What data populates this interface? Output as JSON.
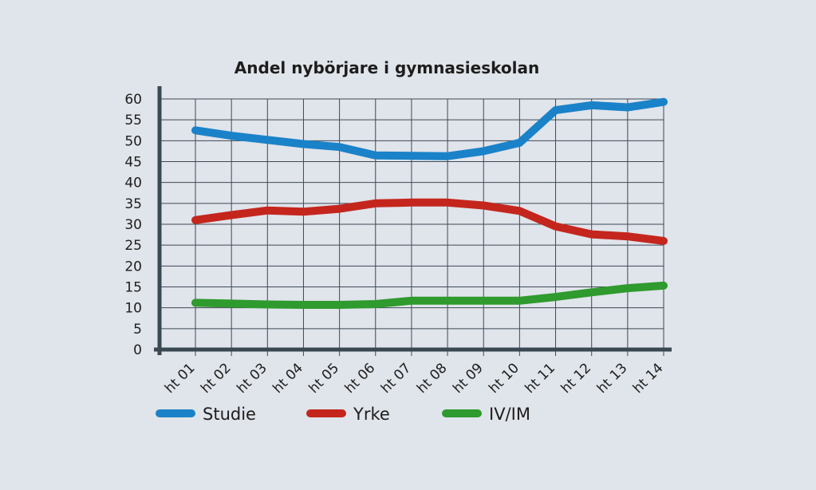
{
  "chart_data": {
    "type": "line",
    "title": "Andel nybörjare i gymnasieskolan",
    "xlabel": "",
    "ylabel": "",
    "categories": [
      "ht 01",
      "ht 02",
      "ht 03",
      "ht 04",
      "ht 05",
      "ht 06",
      "ht 07",
      "ht 08",
      "ht 09",
      "ht 10",
      "ht 11",
      "ht 12",
      "ht 13",
      "ht 14"
    ],
    "yticks": [
      0,
      5,
      10,
      15,
      20,
      25,
      30,
      35,
      40,
      45,
      50,
      55,
      60
    ],
    "ylim": [
      0,
      60
    ],
    "grid": true,
    "legend_position": "bottom",
    "series": [
      {
        "name": "Studie",
        "color": "#1a82c8",
        "values": [
          52.5,
          51.2,
          50.2,
          49.2,
          48.5,
          46.5,
          46.4,
          46.3,
          47.5,
          49.5,
          57.3,
          58.5,
          58.0,
          59.3
        ]
      },
      {
        "name": "Yrke",
        "color": "#c4261d",
        "values": [
          31.0,
          32.2,
          33.3,
          33.0,
          33.7,
          35.0,
          35.2,
          35.2,
          34.5,
          33.2,
          29.5,
          27.6,
          27.1,
          26.0
        ]
      },
      {
        "name": "IV/IM",
        "color": "#2f9a2d",
        "values": [
          11.2,
          11.0,
          10.8,
          10.7,
          10.7,
          10.9,
          11.7,
          11.7,
          11.7,
          11.7,
          12.6,
          13.7,
          14.7,
          15.3
        ]
      }
    ]
  }
}
